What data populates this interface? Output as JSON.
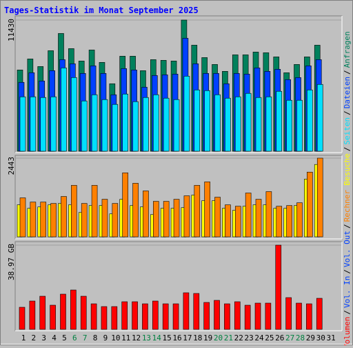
{
  "chart_data": [
    {
      "type": "bar",
      "title": "Tages-Statistik im Monat September 2025",
      "ylim": [
        0,
        11430
      ],
      "yticks": [
        11430
      ],
      "series": [
        {
          "name": "Anfragen",
          "color": "#00805c",
          "values": [
            7080,
            8040,
            7380,
            8760,
            10260,
            8940,
            7860,
            8820,
            7740,
            5880,
            8280,
            8280,
            7020,
            7980,
            7920,
            7860,
            11430,
            9240,
            8160,
            7560,
            6960,
            8400,
            8400,
            8640,
            8580,
            8220,
            6840,
            7560,
            8220,
            9240,
            null
          ]
        },
        {
          "name": "Dateien",
          "color": "#0040ff",
          "values": [
            6000,
            6840,
            6120,
            7020,
            7980,
            7620,
            6780,
            7440,
            6780,
            4920,
            7200,
            7080,
            5580,
            6600,
            6660,
            6720,
            9840,
            7620,
            6780,
            6780,
            5880,
            6780,
            6720,
            7260,
            6960,
            7140,
            6240,
            6420,
            7440,
            7980,
            null
          ]
        },
        {
          "name": "Seiten",
          "color": "#00e0ff",
          "values": [
            4740,
            4740,
            4680,
            4740,
            7260,
            6420,
            4380,
            4920,
            4500,
            4080,
            4980,
            4320,
            4680,
            4920,
            4620,
            4500,
            6540,
            5340,
            5280,
            4920,
            4620,
            4740,
            5040,
            4680,
            4740,
            5220,
            4440,
            4440,
            5340,
            5820,
            null
          ]
        }
      ]
    },
    {
      "type": "bar",
      "legend_separator": "/",
      "ylim": [
        0,
        2443
      ],
      "yticks": [
        2443
      ],
      "series": [
        {
          "name": "Besuche",
          "color": "#ffff00",
          "values": [
            994,
            886,
            929,
            994,
            1037,
            994,
            756,
            972,
            972,
            713,
            1166,
            972,
            929,
            691,
            886,
            886,
            907,
            1296,
            1123,
            1123,
            886,
            821,
            950,
            994,
            994,
            886,
            886,
            972,
            1793,
            2246,
            null
          ]
        },
        {
          "name": "Rechner",
          "color": "#ff8000",
          "values": [
            1210,
            1080,
            1080,
            1037,
            1253,
            1598,
            1037,
            1598,
            1166,
            1037,
            1987,
            1663,
            1426,
            1102,
            1102,
            1166,
            1274,
            1598,
            1706,
            1231,
            994,
            950,
            1361,
            1166,
            1404,
            950,
            972,
            1058,
            2009,
            2443,
            null
          ]
        }
      ]
    },
    {
      "type": "bar",
      "ylim": [
        0,
        38.97
      ],
      "yticks": [
        {
          "value": 38.97,
          "label": "38.97 GB"
        }
      ],
      "categories": [
        "1",
        "2",
        "3",
        "4",
        "5",
        "6",
        "7",
        "8",
        "9",
        "10",
        "11",
        "12",
        "13",
        "14",
        "15",
        "16",
        "17",
        "18",
        "19",
        "20",
        "21",
        "22",
        "23",
        "24",
        "25",
        "26",
        "27",
        "28",
        "29",
        "30",
        "31"
      ],
      "category_colors": [
        "#000000",
        "#000000",
        "#000000",
        "#000000",
        "#000000",
        "#008040",
        "#008040",
        "#000000",
        "#000000",
        "#000000",
        "#000000",
        "#000000",
        "#008040",
        "#008040",
        "#000000",
        "#000000",
        "#000000",
        "#000000",
        "#000000",
        "#008040",
        "#008040",
        "#000000",
        "#000000",
        "#000000",
        "#000000",
        "#000000",
        "#008040",
        "#008040",
        "#000000",
        "#000000",
        "#000000"
      ],
      "legend_extra": [
        {
          "name": "Vol. In",
          "color": "#0040ff"
        },
        {
          "name": "Vol. Out",
          "color": "#0040ff"
        }
      ],
      "series": [
        {
          "name": "Volumen",
          "color": "#ff0000",
          "values": [
            10.22,
            13.1,
            15.33,
            11.18,
            16.29,
            18.21,
            15.33,
            11.82,
            10.54,
            10.54,
            12.78,
            12.78,
            11.82,
            13.1,
            11.82,
            11.82,
            16.93,
            16.61,
            12.46,
            13.42,
            11.82,
            12.78,
            11.18,
            12.14,
            12.14,
            38.97,
            14.69,
            12.14,
            11.82,
            14.37,
            null
          ]
        }
      ]
    }
  ]
}
